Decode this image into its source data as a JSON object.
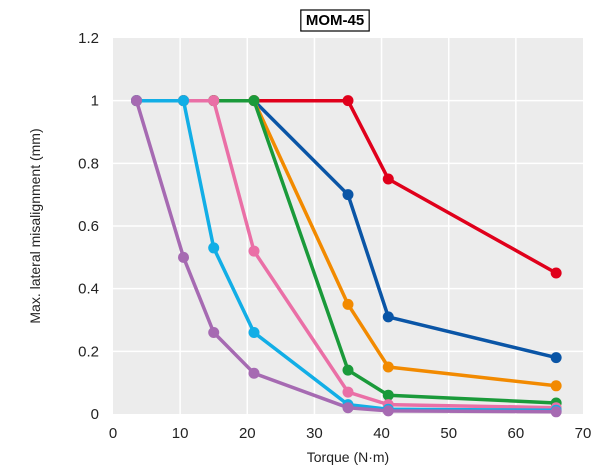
{
  "chart_data": {
    "type": "line",
    "title": "MOM-45",
    "xlabel": "Torque (N·m)",
    "ylabel": "Max. lateral misalignment (mm)",
    "xlim": [
      0,
      70
    ],
    "ylim": [
      0,
      1.2
    ],
    "xticks": [
      0,
      10,
      20,
      30,
      40,
      50,
      60,
      70
    ],
    "yticks": [
      0,
      0.2,
      0.4,
      0.6,
      0.8,
      1,
      1.2
    ],
    "xtick_labels": [
      "0",
      "10",
      "20",
      "30",
      "40",
      "50",
      "60",
      "70"
    ],
    "ytick_labels": [
      "0",
      "0.2",
      "0.4",
      "0.6",
      "0.8",
      "1",
      "1.2"
    ],
    "grid": true,
    "series": [
      {
        "color": "#e0001b",
        "x": [
          3.5,
          10.5,
          15,
          21,
          35,
          41,
          66
        ],
        "y": [
          1,
          1,
          1,
          1,
          1,
          0.75,
          0.45
        ]
      },
      {
        "color": "#0a55a6",
        "x": [
          3.5,
          10.5,
          15,
          21,
          35,
          41,
          66
        ],
        "y": [
          1,
          1,
          1,
          1,
          0.7,
          0.31,
          0.18
        ]
      },
      {
        "color": "#f28a00",
        "x": [
          3.5,
          10.5,
          15,
          21,
          35,
          41,
          66
        ],
        "y": [
          1,
          1,
          1,
          1,
          0.35,
          0.15,
          0.09
        ]
      },
      {
        "color": "#1a9a3a",
        "x": [
          3.5,
          10.5,
          15,
          21,
          35,
          41,
          66
        ],
        "y": [
          1,
          1,
          1,
          1,
          0.14,
          0.06,
          0.035
        ]
      },
      {
        "color": "#ea6fa6",
        "x": [
          3.5,
          10.5,
          15,
          21,
          35,
          41,
          66
        ],
        "y": [
          1,
          1,
          1,
          0.52,
          0.07,
          0.03,
          0.02
        ]
      },
      {
        "color": "#12aee6",
        "x": [
          3.5,
          10.5,
          15,
          21,
          35,
          41,
          66
        ],
        "y": [
          1,
          1,
          0.53,
          0.26,
          0.03,
          0.015,
          0.012
        ]
      },
      {
        "color": "#a66ab2",
        "x": [
          3.5,
          10.5,
          15,
          21,
          35,
          41,
          66
        ],
        "y": [
          1,
          0.5,
          0.26,
          0.13,
          0.02,
          0.01,
          0.007
        ]
      }
    ]
  }
}
